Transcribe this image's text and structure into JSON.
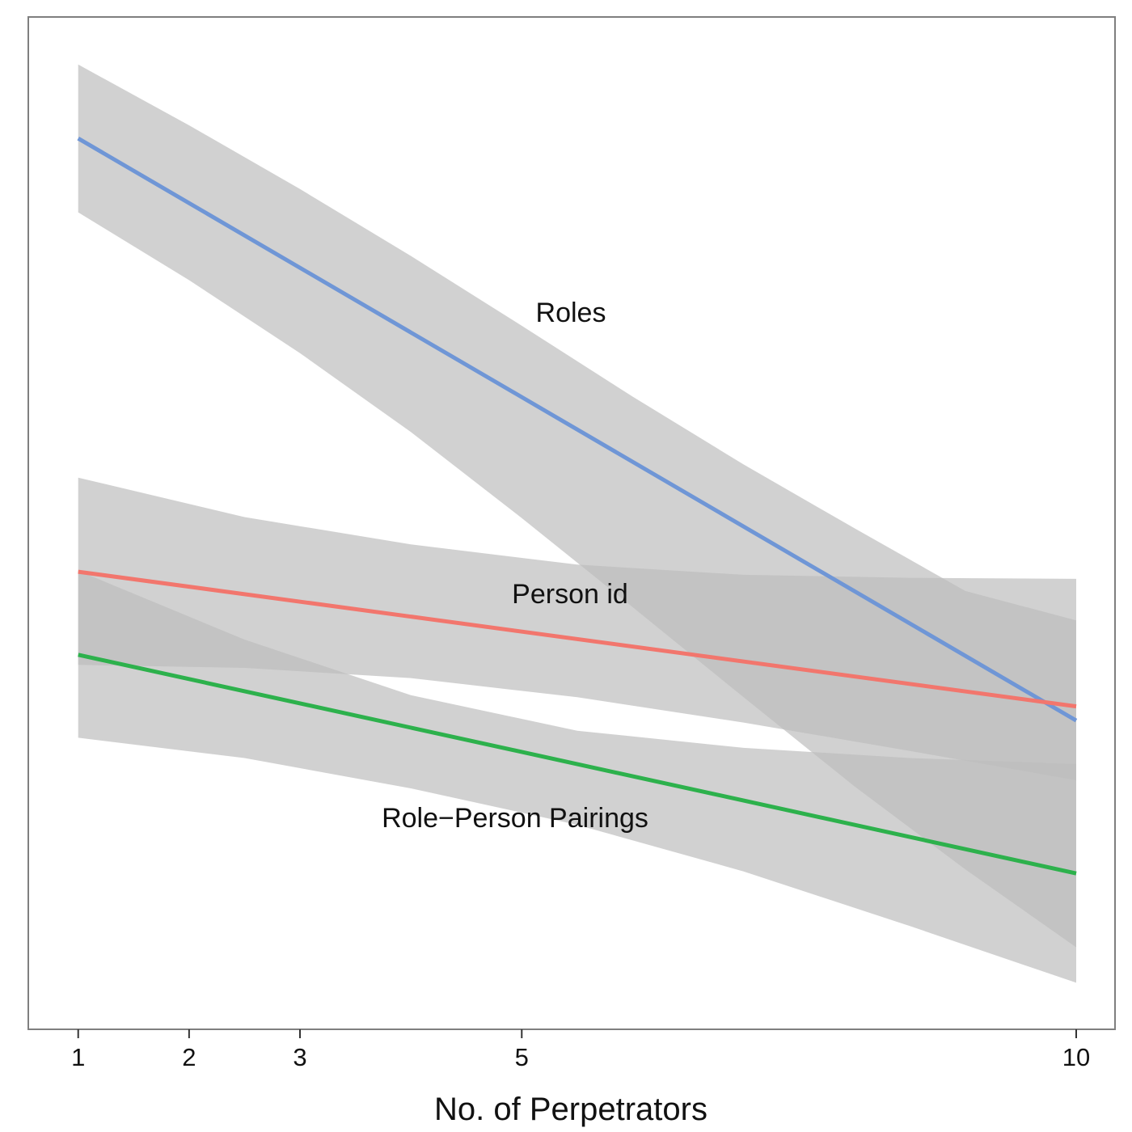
{
  "chart_data": {
    "type": "line",
    "xlabel": "No. of Perpetrators",
    "ylabel": "",
    "x_ticks": [
      1,
      2,
      3,
      5,
      10
    ],
    "xlim": [
      0.55,
      10.35
    ],
    "ylim": [
      0,
      100
    ],
    "grid": false,
    "legend": "none",
    "band_color": "#bdbdbd",
    "series": [
      {
        "name": "Roles",
        "color": "#6f96d6",
        "x": [
          1,
          10
        ],
        "y": [
          88.0,
          30.5
        ],
        "band": {
          "x": [
            1,
            2,
            3,
            4,
            5,
            6,
            7,
            8,
            9,
            10
          ],
          "lower": [
            80.7,
            74.0,
            66.8,
            59.0,
            50.5,
            41.7,
            32.8,
            24.0,
            15.8,
            8.1
          ],
          "upper": [
            95.3,
            89.3,
            83.0,
            76.4,
            69.5,
            62.5,
            55.8,
            49.5,
            43.3,
            40.4
          ]
        }
      },
      {
        "name": "Person id",
        "color": "#f2766d",
        "x": [
          1,
          10
        ],
        "y": [
          45.2,
          31.9
        ],
        "band": {
          "x": [
            1,
            2.5,
            4,
            5.5,
            7,
            8.5,
            10
          ],
          "lower": [
            36.0,
            35.7,
            34.7,
            32.8,
            30.3,
            27.5,
            24.6
          ],
          "upper": [
            54.5,
            50.6,
            47.9,
            45.9,
            44.9,
            44.6,
            44.5
          ]
        }
      },
      {
        "name": "Role−Person Pairings",
        "color": "#2db14c",
        "x": [
          1,
          10
        ],
        "y": [
          37.0,
          15.4
        ],
        "band": {
          "x": [
            1,
            2.5,
            4,
            5.5,
            7,
            8.5,
            10
          ],
          "lower": [
            28.8,
            26.8,
            23.8,
            20.2,
            15.6,
            10.2,
            4.6
          ],
          "upper": [
            45.3,
            38.5,
            33.0,
            29.5,
            27.8,
            26.8,
            26.2
          ]
        }
      }
    ],
    "annotations": [
      "Roles",
      "Person id",
      "Role−Person Pairings"
    ]
  }
}
